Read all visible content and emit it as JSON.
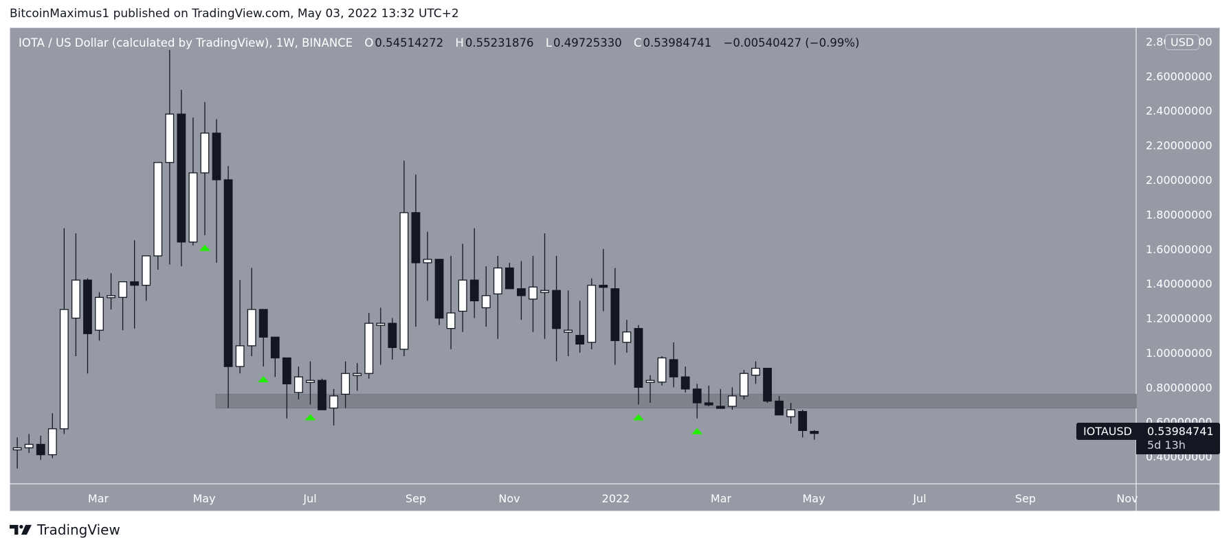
{
  "header": {
    "publisher_line": "BitcoinMaximus1 published on TradingView.com, May 03, 2022 13:32 UTC+2"
  },
  "legend": {
    "symbol": "IOTA / US Dollar (calculated by TradingView), 1W, BINANCE",
    "open_key": "O",
    "open": "0.54514272",
    "high_key": "H",
    "high": "0.55231876",
    "low_key": "L",
    "low": "0.49725330",
    "close_key": "C",
    "close": "0.53984741",
    "change": "−0.00540427 (−0.99%)"
  },
  "currency_badge": "USD",
  "last_price": {
    "symbol": "IOTAUSD",
    "price": "0.53984741",
    "countdown": "5d 13h"
  },
  "footer": {
    "brand": "TradingView"
  },
  "colors": {
    "background": "#959aa4",
    "up_candle": "#ffffff",
    "down_candle": "#131722",
    "support_zone": "#7f838c",
    "marker": "#22ee00"
  },
  "chart_data": {
    "type": "candlestick",
    "title": "IOTA / US Dollar (calculated by TradingView), 1W, BINANCE",
    "xlabel": "",
    "ylabel": "USD",
    "x_ticks": [
      "Mar",
      "May",
      "Jul",
      "Sep",
      "Nov",
      "2022",
      "Mar",
      "May",
      "Jul",
      "Sep",
      "Nov"
    ],
    "y_ticks": [
      "2.80000000",
      "2.60000000",
      "2.40000000",
      "2.20000000",
      "2.00000000",
      "1.80000000",
      "1.60000000",
      "1.40000000",
      "1.20000000",
      "1.00000000",
      "0.80000000",
      "0.60000000",
      "0.40000000"
    ],
    "ylim": [
      0.28,
      2.82
    ],
    "grid": false,
    "support_zone": {
      "low": 0.68,
      "high": 0.76
    },
    "markers": [
      {
        "index": 16,
        "type": "triangle-up"
      },
      {
        "index": 21,
        "type": "triangle-up"
      },
      {
        "index": 25,
        "type": "triangle-up"
      },
      {
        "index": 53,
        "type": "triangle-up"
      },
      {
        "index": 58,
        "type": "triangle-up"
      }
    ],
    "candles": [
      [
        0.44,
        0.51,
        0.33,
        0.45
      ],
      [
        0.45,
        0.53,
        0.42,
        0.47
      ],
      [
        0.47,
        0.52,
        0.38,
        0.41
      ],
      [
        0.41,
        0.65,
        0.39,
        0.56
      ],
      [
        0.56,
        1.72,
        0.53,
        1.25
      ],
      [
        1.2,
        1.69,
        0.98,
        1.42
      ],
      [
        1.42,
        1.43,
        0.88,
        1.11
      ],
      [
        1.13,
        1.35,
        1.07,
        1.32
      ],
      [
        1.33,
        1.46,
        1.25,
        1.33
      ],
      [
        1.32,
        1.38,
        1.13,
        1.41
      ],
      [
        1.41,
        1.65,
        1.14,
        1.39
      ],
      [
        1.39,
        1.54,
        1.3,
        1.56
      ],
      [
        1.56,
        2.05,
        1.48,
        2.1
      ],
      [
        2.1,
        2.75,
        1.51,
        2.38
      ],
      [
        2.38,
        2.52,
        1.5,
        1.64
      ],
      [
        1.64,
        2.36,
        1.62,
        2.04
      ],
      [
        2.04,
        2.45,
        1.68,
        2.27
      ],
      [
        2.27,
        2.35,
        1.52,
        2.0
      ],
      [
        2.0,
        2.08,
        0.68,
        0.92
      ],
      [
        0.92,
        1.42,
        0.88,
        1.04
      ],
      [
        1.04,
        1.49,
        0.98,
        1.25
      ],
      [
        1.25,
        1.25,
        0.92,
        1.09
      ],
      [
        1.09,
        1.09,
        0.86,
        0.97
      ],
      [
        0.97,
        0.96,
        0.62,
        0.82
      ],
      [
        0.77,
        0.92,
        0.73,
        0.86
      ],
      [
        0.84,
        0.95,
        0.7,
        0.84
      ],
      [
        0.84,
        0.85,
        0.67,
        0.67
      ],
      [
        0.68,
        0.79,
        0.58,
        0.75
      ],
      [
        0.76,
        0.95,
        0.68,
        0.88
      ],
      [
        0.88,
        0.94,
        0.78,
        0.88
      ],
      [
        0.88,
        1.23,
        0.85,
        1.17
      ],
      [
        1.17,
        1.26,
        0.93,
        1.17
      ],
      [
        1.17,
        1.2,
        0.96,
        1.03
      ],
      [
        1.02,
        2.11,
        0.98,
        1.81
      ],
      [
        1.81,
        2.03,
        1.15,
        1.52
      ],
      [
        1.52,
        1.7,
        1.3,
        1.54
      ],
      [
        1.54,
        1.54,
        1.16,
        1.2
      ],
      [
        1.14,
        1.56,
        1.02,
        1.23
      ],
      [
        1.24,
        1.63,
        1.12,
        1.42
      ],
      [
        1.42,
        1.72,
        1.2,
        1.3
      ],
      [
        1.26,
        1.5,
        1.15,
        1.33
      ],
      [
        1.34,
        1.56,
        1.08,
        1.49
      ],
      [
        1.49,
        1.52,
        1.4,
        1.37
      ],
      [
        1.37,
        1.53,
        1.19,
        1.33
      ],
      [
        1.31,
        1.56,
        1.12,
        1.38
      ],
      [
        1.36,
        1.69,
        1.08,
        1.36
      ],
      [
        1.36,
        1.56,
        0.95,
        1.14
      ],
      [
        1.13,
        1.36,
        0.98,
        1.13
      ],
      [
        1.1,
        1.3,
        1.0,
        1.05
      ],
      [
        1.06,
        1.43,
        1.02,
        1.39
      ],
      [
        1.39,
        1.6,
        1.24,
        1.38
      ],
      [
        1.37,
        1.49,
        0.93,
        1.07
      ],
      [
        1.06,
        1.19,
        1.0,
        1.12
      ],
      [
        1.14,
        1.16,
        0.7,
        0.8
      ],
      [
        0.84,
        0.87,
        0.71,
        0.84
      ],
      [
        0.83,
        0.98,
        0.81,
        0.97
      ],
      [
        0.96,
        1.06,
        0.8,
        0.86
      ],
      [
        0.86,
        0.92,
        0.77,
        0.79
      ],
      [
        0.79,
        0.82,
        0.62,
        0.71
      ],
      [
        0.71,
        0.81,
        0.69,
        0.7
      ],
      [
        0.69,
        0.79,
        0.69,
        0.68
      ],
      [
        0.69,
        0.8,
        0.67,
        0.75
      ],
      [
        0.75,
        0.9,
        0.73,
        0.88
      ],
      [
        0.87,
        0.95,
        0.82,
        0.91
      ],
      [
        0.91,
        0.91,
        0.71,
        0.72
      ],
      [
        0.72,
        0.75,
        0.64,
        0.64
      ],
      [
        0.63,
        0.71,
        0.59,
        0.67
      ],
      [
        0.66,
        0.67,
        0.51,
        0.55
      ],
      [
        0.545,
        0.552,
        0.497,
        0.54
      ]
    ]
  }
}
